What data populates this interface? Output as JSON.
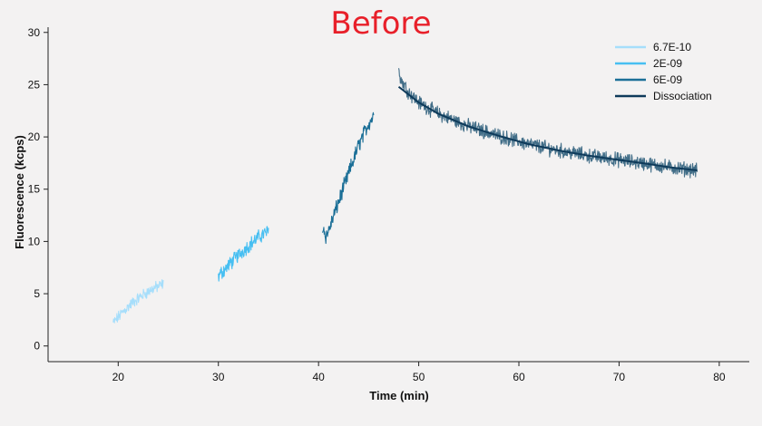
{
  "chart_data": {
    "type": "line",
    "title": "Before",
    "xlabel": "Time (min)",
    "ylabel": "Fluorescence (kcps)",
    "xlim": [
      13,
      83
    ],
    "ylim": [
      -1.5,
      30.5
    ],
    "xticks": [
      20,
      30,
      40,
      50,
      60,
      70,
      80
    ],
    "yticks": [
      0,
      5,
      10,
      15,
      20,
      25,
      30
    ],
    "legend_position": "top-right",
    "grid": false,
    "series": [
      {
        "name": "6.7E-10",
        "color": "#a6defb",
        "noise": 0.45,
        "x": [
          19.5,
          20.5,
          21.5,
          22.5,
          23.5,
          24.5
        ],
        "y": [
          2.2,
          3.3,
          4.2,
          4.9,
          5.5,
          5.9
        ]
      },
      {
        "name": "2E-09",
        "color": "#47bff2",
        "noise": 0.55,
        "x": [
          30.0,
          31.0,
          32.0,
          33.0,
          34.0,
          35.0
        ],
        "y": [
          6.7,
          7.7,
          8.7,
          9.6,
          10.4,
          11.0
        ]
      },
      {
        "name": "6E-09",
        "color": "#1b6f97",
        "noise": 0.6,
        "x": [
          40.4,
          40.7,
          41.0,
          42.0,
          43.0,
          44.0,
          45.0,
          45.5
        ],
        "y": [
          11.5,
          10.5,
          11.0,
          13.8,
          16.5,
          19.2,
          21.3,
          22.0
        ]
      },
      {
        "name": "Dissociation",
        "color": "#0e3a5a",
        "noise": 0.0,
        "x": [
          48.0,
          50.0,
          52.0,
          55.0,
          58.0,
          61.0,
          64.0,
          67.0,
          70.0,
          73.0,
          75.0,
          77.8
        ],
        "y": [
          24.8,
          23.3,
          22.2,
          21.0,
          20.1,
          19.3,
          18.7,
          18.2,
          17.8,
          17.4,
          17.1,
          16.8
        ]
      }
    ],
    "dissociation_raw": {
      "color": "#2f5f7c",
      "noise": 0.55,
      "x": [
        48.0,
        48.2,
        49.0,
        50.0,
        52.0,
        55.0,
        58.0,
        61.0,
        64.0,
        67.0,
        70.0,
        73.0,
        75.0,
        77.8
      ],
      "y": [
        27.0,
        25.5,
        24.3,
        23.3,
        22.2,
        21.0,
        20.1,
        19.3,
        18.7,
        18.2,
        17.8,
        17.4,
        17.1,
        16.8
      ]
    }
  }
}
